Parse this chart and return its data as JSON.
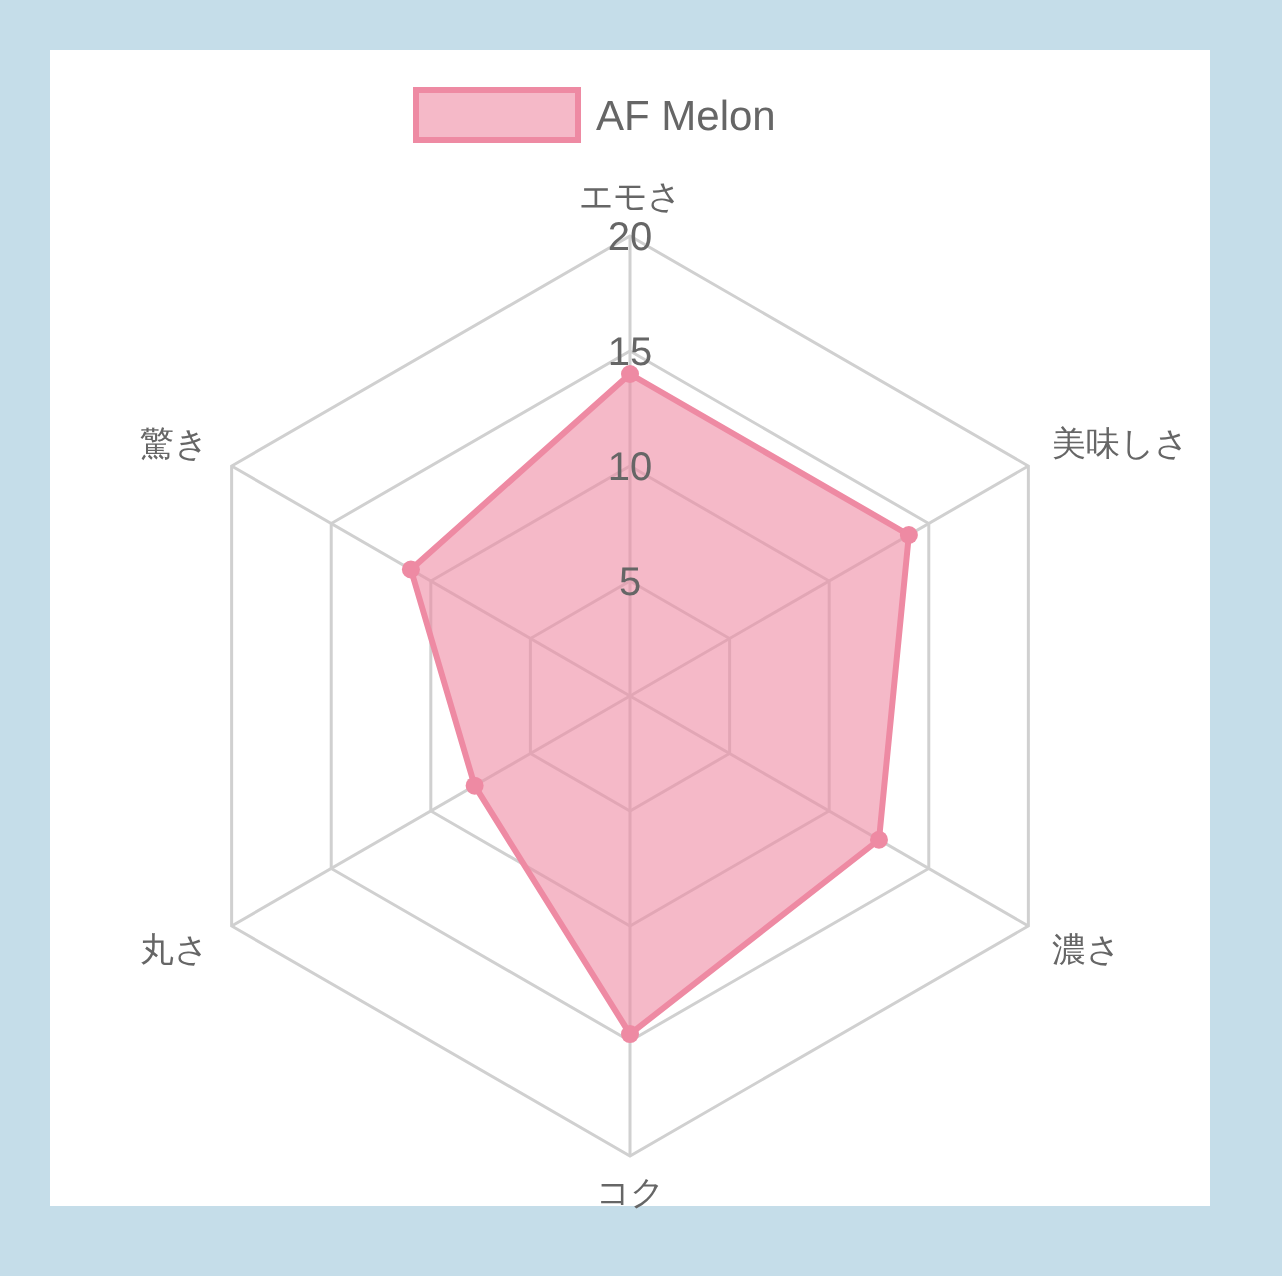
{
  "chart_data": {
    "type": "radar",
    "categories": [
      "エモさ",
      "美味しさ",
      "濃さ",
      "コク",
      "丸さ",
      "驚き"
    ],
    "series": [
      {
        "name": "AF Melon",
        "color": "#ee8aa3",
        "values": [
          14,
          14,
          12.5,
          14.7,
          7.8,
          11
        ]
      }
    ],
    "ylim": [
      0,
      20
    ],
    "yticks": [
      5,
      10,
      15,
      20
    ],
    "grid": true,
    "legend": "top",
    "marker": "circle"
  }
}
